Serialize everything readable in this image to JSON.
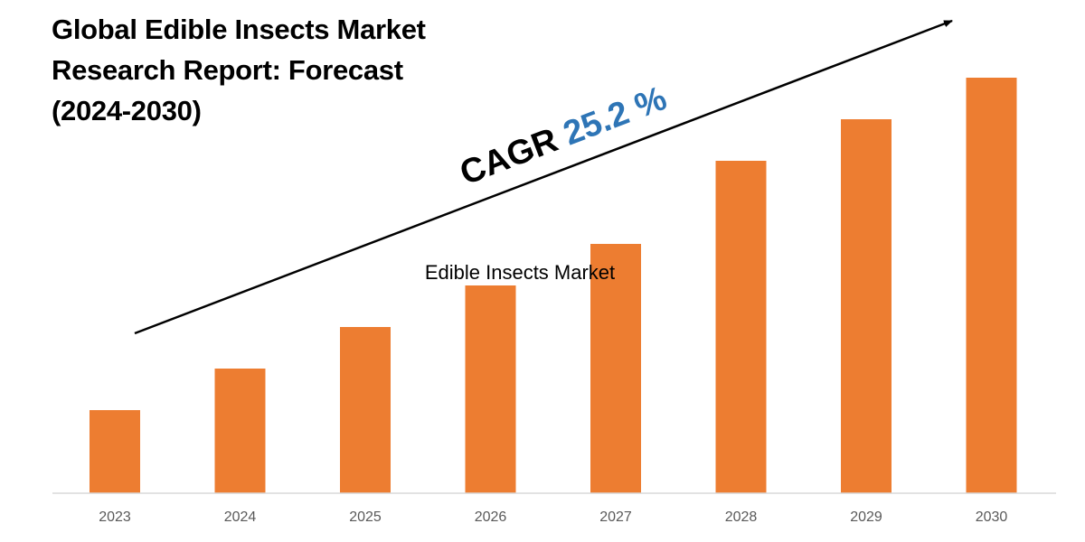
{
  "title": {
    "line1": "Global Edible Insects Market",
    "line2": "Research Report: Forecast",
    "line3": "(2024-2030)"
  },
  "annotation": {
    "cagr_prefix": "CAGR ",
    "cagr_value": "25.2 %"
  },
  "colors": {
    "bar": "#ED7D31",
    "axis": "#D9D9D9",
    "tick_text": "#595959",
    "cagr_value": "#2E75B6",
    "arrow": "#000000"
  },
  "chart_data": {
    "type": "bar",
    "categories": [
      "2023",
      "2024",
      "2025",
      "2026",
      "2027",
      "2028",
      "2029",
      "2030"
    ],
    "series": [
      {
        "name": "Edible Insects Market",
        "values": [
          20,
          30,
          40,
          50,
          60,
          80,
          90,
          100
        ]
      }
    ],
    "title": "Global Edible Insects Market Research Report: Forecast (2024-2030)",
    "xlabel": "",
    "ylabel": "",
    "ylim": [
      0,
      100
    ],
    "grid": false,
    "legend": "none",
    "annotations": [
      "CAGR 25.2 %"
    ]
  }
}
